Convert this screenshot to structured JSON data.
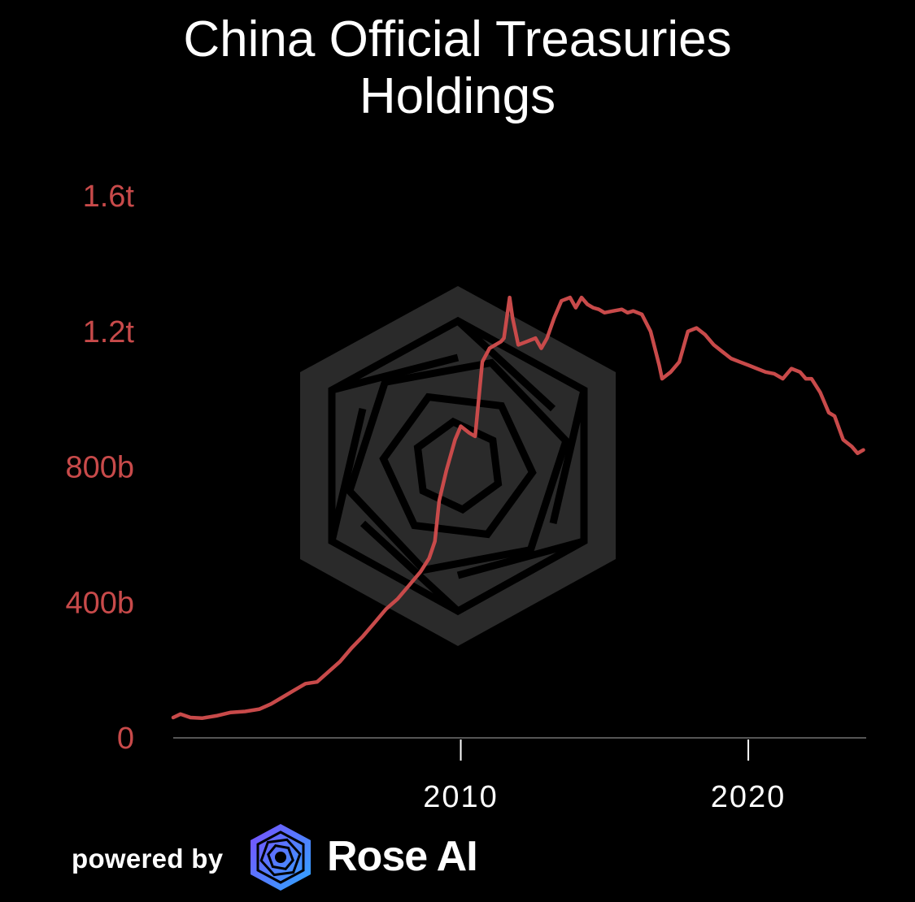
{
  "chart_data": {
    "type": "line",
    "title_lines": [
      "China Official Treasuries",
      "Holdings"
    ],
    "ylim": [
      0,
      1600
    ],
    "y_unit": "billions",
    "y_ticks": [
      {
        "value": 0,
        "label": "0"
      },
      {
        "value": 400,
        "label": "400b"
      },
      {
        "value": 800,
        "label": "800b"
      },
      {
        "value": 1200,
        "label": "1.2t"
      },
      {
        "value": 1600,
        "label": "1.6t"
      }
    ],
    "xlim": [
      2000,
      2024.1
    ],
    "x_ticks": [
      {
        "value": 2010,
        "label": "2010"
      },
      {
        "value": 2020,
        "label": "2020"
      }
    ],
    "grid": false,
    "legend": "none",
    "series": [
      {
        "color": "#c84a4a",
        "x": [
          2000.0,
          2000.25,
          2000.6,
          2001.0,
          2001.5,
          2002.0,
          2002.5,
          2003.0,
          2003.4,
          2003.8,
          2004.2,
          2004.6,
          2005.0,
          2005.4,
          2005.8,
          2006.2,
          2006.6,
          2007.0,
          2007.4,
          2007.8,
          2008.2,
          2008.6,
          2008.9,
          2009.1,
          2009.25,
          2009.5,
          2009.8,
          2010.0,
          2010.3,
          2010.5,
          2010.75,
          2011.0,
          2011.4,
          2011.5,
          2011.7,
          2011.8,
          2012.0,
          2012.3,
          2012.6,
          2012.8,
          2013.0,
          2013.25,
          2013.5,
          2013.8,
          2014.0,
          2014.2,
          2014.4,
          2014.6,
          2014.8,
          2015.0,
          2015.3,
          2015.6,
          2015.8,
          2016.0,
          2016.3,
          2016.6,
          2016.9,
          2017.0,
          2017.3,
          2017.6,
          2017.9,
          2018.2,
          2018.5,
          2018.8,
          2019.1,
          2019.4,
          2019.7,
          2020.0,
          2020.3,
          2020.6,
          2020.9,
          2021.2,
          2021.5,
          2021.8,
          2022.0,
          2022.2,
          2022.5,
          2022.8,
          2023.0,
          2023.3,
          2023.6,
          2023.8,
          2024.0
        ],
        "y": [
          60,
          70,
          60,
          58,
          65,
          75,
          78,
          85,
          100,
          120,
          140,
          160,
          165,
          195,
          225,
          265,
          300,
          340,
          380,
          410,
          450,
          490,
          530,
          580,
          700,
          790,
          880,
          920,
          900,
          890,
          1110,
          1150,
          1170,
          1180,
          1300,
          1240,
          1160,
          1170,
          1180,
          1150,
          1180,
          1240,
          1290,
          1300,
          1270,
          1300,
          1280,
          1270,
          1265,
          1255,
          1260,
          1265,
          1255,
          1260,
          1250,
          1200,
          1100,
          1060,
          1080,
          1110,
          1200,
          1210,
          1190,
          1160,
          1140,
          1120,
          1110,
          1100,
          1090,
          1080,
          1075,
          1060,
          1090,
          1080,
          1060,
          1060,
          1020,
          960,
          950,
          880,
          860,
          840,
          850
        ]
      }
    ]
  },
  "footer": {
    "powered_by": "powered by",
    "brand": "Rose AI"
  },
  "colors": {
    "background": "#000000",
    "line": "#c84a4a",
    "axis_labels_y": "#c84a4a",
    "axis_labels_x": "#ffffff",
    "watermark": "#2a2a2a"
  }
}
